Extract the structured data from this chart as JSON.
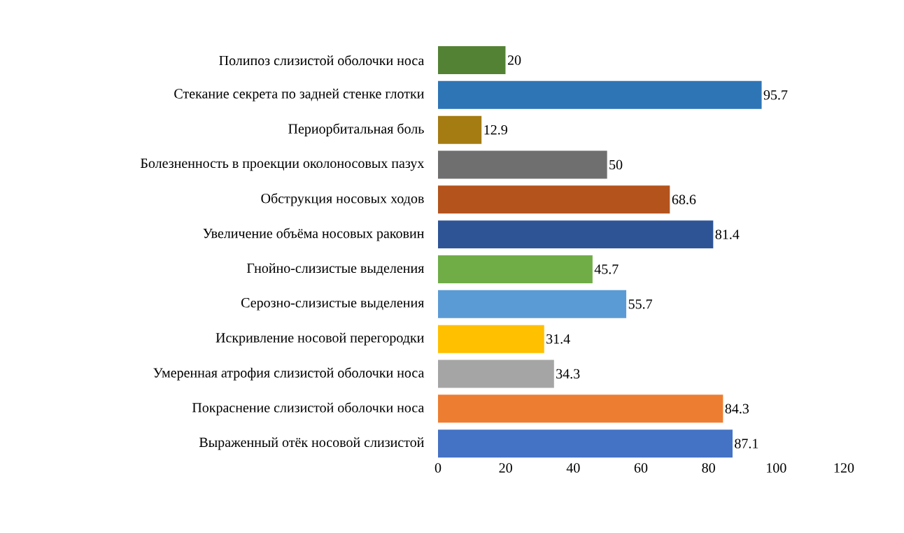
{
  "chart_data": {
    "type": "bar",
    "orientation": "horizontal",
    "categories": [
      "Полипоз слизистой оболочки носа",
      "Стекание секрета по задней стенке глотки",
      "Периорбитальная боль",
      "Болезненность в проекции околоносовых пазух",
      "Обструкция носовых ходов",
      "Увеличение объёма носовых раковин",
      "Гнойно-слизистые выделения",
      "Серозно-слизистые выделения",
      "Искривление носовой перегородки",
      "Умеренная атрофия слизистой оболочки носа",
      "Покраснение слизистой оболочки носа",
      "Выраженный отёк носовой слизистой"
    ],
    "values": [
      20,
      95.7,
      12.9,
      50,
      68.6,
      81.4,
      45.7,
      55.7,
      31.4,
      34.3,
      84.3,
      87.1
    ],
    "value_labels": [
      "20",
      "95.7",
      "12.9",
      "50",
      "68.6",
      "81.4",
      "45.7",
      "55.7",
      "31.4",
      "34.3",
      "84.3",
      "87.1"
    ],
    "colors": [
      "#548235",
      "#2e75b6",
      "#a57c12",
      "#6f6f6f",
      "#b4531c",
      "#2f5496",
      "#70ad47",
      "#5b9bd5",
      "#ffc000",
      "#a5a5a5",
      "#ed7d31",
      "#4472c4"
    ],
    "xlim": [
      0,
      120
    ],
    "xticks": [
      0,
      20,
      40,
      60,
      80,
      100,
      120
    ],
    "grid": false
  }
}
